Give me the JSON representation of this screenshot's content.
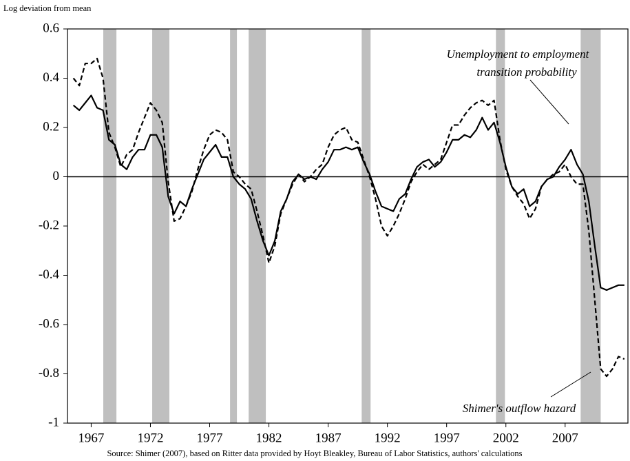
{
  "chart_data": {
    "type": "line",
    "y_axis_label": "Log deviation from mean",
    "source": "Source: Shimer (2007), based on Ritter data provided by Hoyt Bleakley, Bureau of Labor Statistics, authors' calculations",
    "annotations": [
      "Unemployment to employment",
      "transition probability",
      "Shimer's outflow hazard"
    ],
    "xlim": [
      1965,
      2012.3
    ],
    "xticks": [
      1967,
      1972,
      1977,
      1982,
      1987,
      1992,
      1997,
      2002,
      2007
    ],
    "ylim": [
      -1,
      0.6
    ],
    "yticks": [
      0.6,
      0.4,
      0.2,
      0,
      -0.2,
      -0.4,
      -0.6,
      -0.8,
      -1
    ],
    "zero_line": true,
    "shaded_periods": [
      [
        1968.02,
        1969.13
      ],
      [
        1972.15,
        1973.6
      ],
      [
        1978.72,
        1979.3
      ],
      [
        1980.29,
        1981.74
      ],
      [
        1989.83,
        1990.58
      ],
      [
        2001.16,
        2001.92
      ],
      [
        2008.31,
        2010.0
      ]
    ],
    "shade_color": "#bfbfbf",
    "x": [
      1965.5,
      1966,
      1966.5,
      1967,
      1967.5,
      1968,
      1968.5,
      1969,
      1969.5,
      1970,
      1970.5,
      1971,
      1971.5,
      1972,
      1972.5,
      1973,
      1973.5,
      1974,
      1974.5,
      1975,
      1975.5,
      1976,
      1976.5,
      1977,
      1977.5,
      1978,
      1978.5,
      1979,
      1979.5,
      1980,
      1980.5,
      1981,
      1981.5,
      1982,
      1982.5,
      1983,
      1983.5,
      1984,
      1984.5,
      1985,
      1985.5,
      1986,
      1986.5,
      1987,
      1987.5,
      1988,
      1988.5,
      1989,
      1989.5,
      1990,
      1990.5,
      1991,
      1991.5,
      1992,
      1992.5,
      1993,
      1993.5,
      1994,
      1994.5,
      1995,
      1995.5,
      1996,
      1996.5,
      1997,
      1997.5,
      1998,
      1998.5,
      1999,
      1999.5,
      2000,
      2000.5,
      2001,
      2001.5,
      2002,
      2002.5,
      2003,
      2003.5,
      2004,
      2004.5,
      2005,
      2005.5,
      2006,
      2006.5,
      2007,
      2007.5,
      2008,
      2008.5,
      2009,
      2009.5,
      2010,
      2010.5,
      2011,
      2011.5,
      2012
    ],
    "series": [
      {
        "color": "#000000",
        "line_style": "solid",
        "values": [
          0.29,
          0.27,
          0.3,
          0.33,
          0.28,
          0.27,
          0.15,
          0.13,
          0.05,
          0.03,
          0.08,
          0.11,
          0.11,
          0.17,
          0.17,
          0.12,
          -0.08,
          -0.15,
          -0.1,
          -0.12,
          -0.05,
          0.01,
          0.07,
          0.1,
          0.13,
          0.08,
          0.08,
          0.0,
          -0.03,
          -0.05,
          -0.09,
          -0.18,
          -0.26,
          -0.32,
          -0.26,
          -0.14,
          -0.09,
          -0.02,
          0.01,
          -0.01,
          0.0,
          -0.01,
          0.03,
          0.06,
          0.11,
          0.11,
          0.12,
          0.11,
          0.12,
          0.06,
          0.01,
          -0.06,
          -0.12,
          -0.13,
          -0.14,
          -0.09,
          -0.07,
          -0.01,
          0.04,
          0.06,
          0.07,
          0.04,
          0.06,
          0.1,
          0.15,
          0.15,
          0.17,
          0.16,
          0.19,
          0.24,
          0.19,
          0.22,
          0.14,
          0.04,
          -0.04,
          -0.07,
          -0.05,
          -0.12,
          -0.1,
          -0.04,
          -0.01,
          0.0,
          0.04,
          0.07,
          0.11,
          0.05,
          0.01,
          -0.1,
          -0.28,
          -0.45,
          -0.46,
          -0.45,
          -0.44,
          -0.44
        ]
      },
      {
        "color": "#000000",
        "line_style": "dashed",
        "values": [
          0.4,
          0.37,
          0.46,
          0.46,
          0.48,
          0.4,
          0.18,
          0.12,
          0.04,
          0.09,
          0.11,
          0.18,
          0.24,
          0.3,
          0.27,
          0.22,
          -0.02,
          -0.18,
          -0.17,
          -0.12,
          -0.06,
          0.03,
          0.11,
          0.17,
          0.19,
          0.18,
          0.15,
          0.02,
          0.0,
          -0.03,
          -0.05,
          -0.14,
          -0.24,
          -0.35,
          -0.28,
          -0.15,
          -0.09,
          -0.03,
          0.01,
          -0.02,
          0.0,
          0.03,
          0.05,
          0.12,
          0.17,
          0.19,
          0.2,
          0.15,
          0.14,
          0.07,
          0.0,
          -0.09,
          -0.2,
          -0.24,
          -0.2,
          -0.15,
          -0.09,
          -0.02,
          0.02,
          0.05,
          0.03,
          0.05,
          0.07,
          0.14,
          0.21,
          0.21,
          0.25,
          0.28,
          0.3,
          0.31,
          0.29,
          0.31,
          0.15,
          0.03,
          -0.04,
          -0.08,
          -0.11,
          -0.17,
          -0.13,
          -0.04,
          -0.01,
          0.01,
          0.02,
          0.05,
          0.0,
          -0.03,
          -0.03,
          -0.22,
          -0.5,
          -0.78,
          -0.81,
          -0.78,
          -0.73,
          -0.74
        ]
      }
    ]
  }
}
